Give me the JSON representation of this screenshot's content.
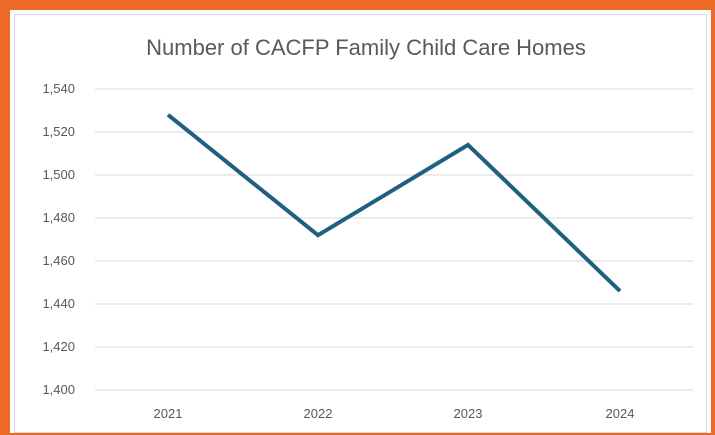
{
  "chart_data": {
    "type": "line",
    "title": "Number of CACFP Family Child Care Homes",
    "xlabel": "",
    "ylabel": "",
    "categories": [
      "2021",
      "2022",
      "2023",
      "2024"
    ],
    "series": [
      {
        "values": [
          1528,
          1472,
          1514,
          1446
        ]
      }
    ],
    "ylim": [
      1400,
      1540
    ],
    "yticks": [
      1400,
      1420,
      1440,
      1460,
      1480,
      1500,
      1520,
      1540
    ],
    "ytick_labels": [
      "1,400",
      "1,420",
      "1,440",
      "1,460",
      "1,480",
      "1,500",
      "1,520",
      "1,540"
    ],
    "grid": true,
    "legend": "none",
    "colors": {
      "line": "#1f5f80",
      "grid": "#d9d9d9",
      "text": "#595959",
      "border": "#ea6a26"
    }
  }
}
